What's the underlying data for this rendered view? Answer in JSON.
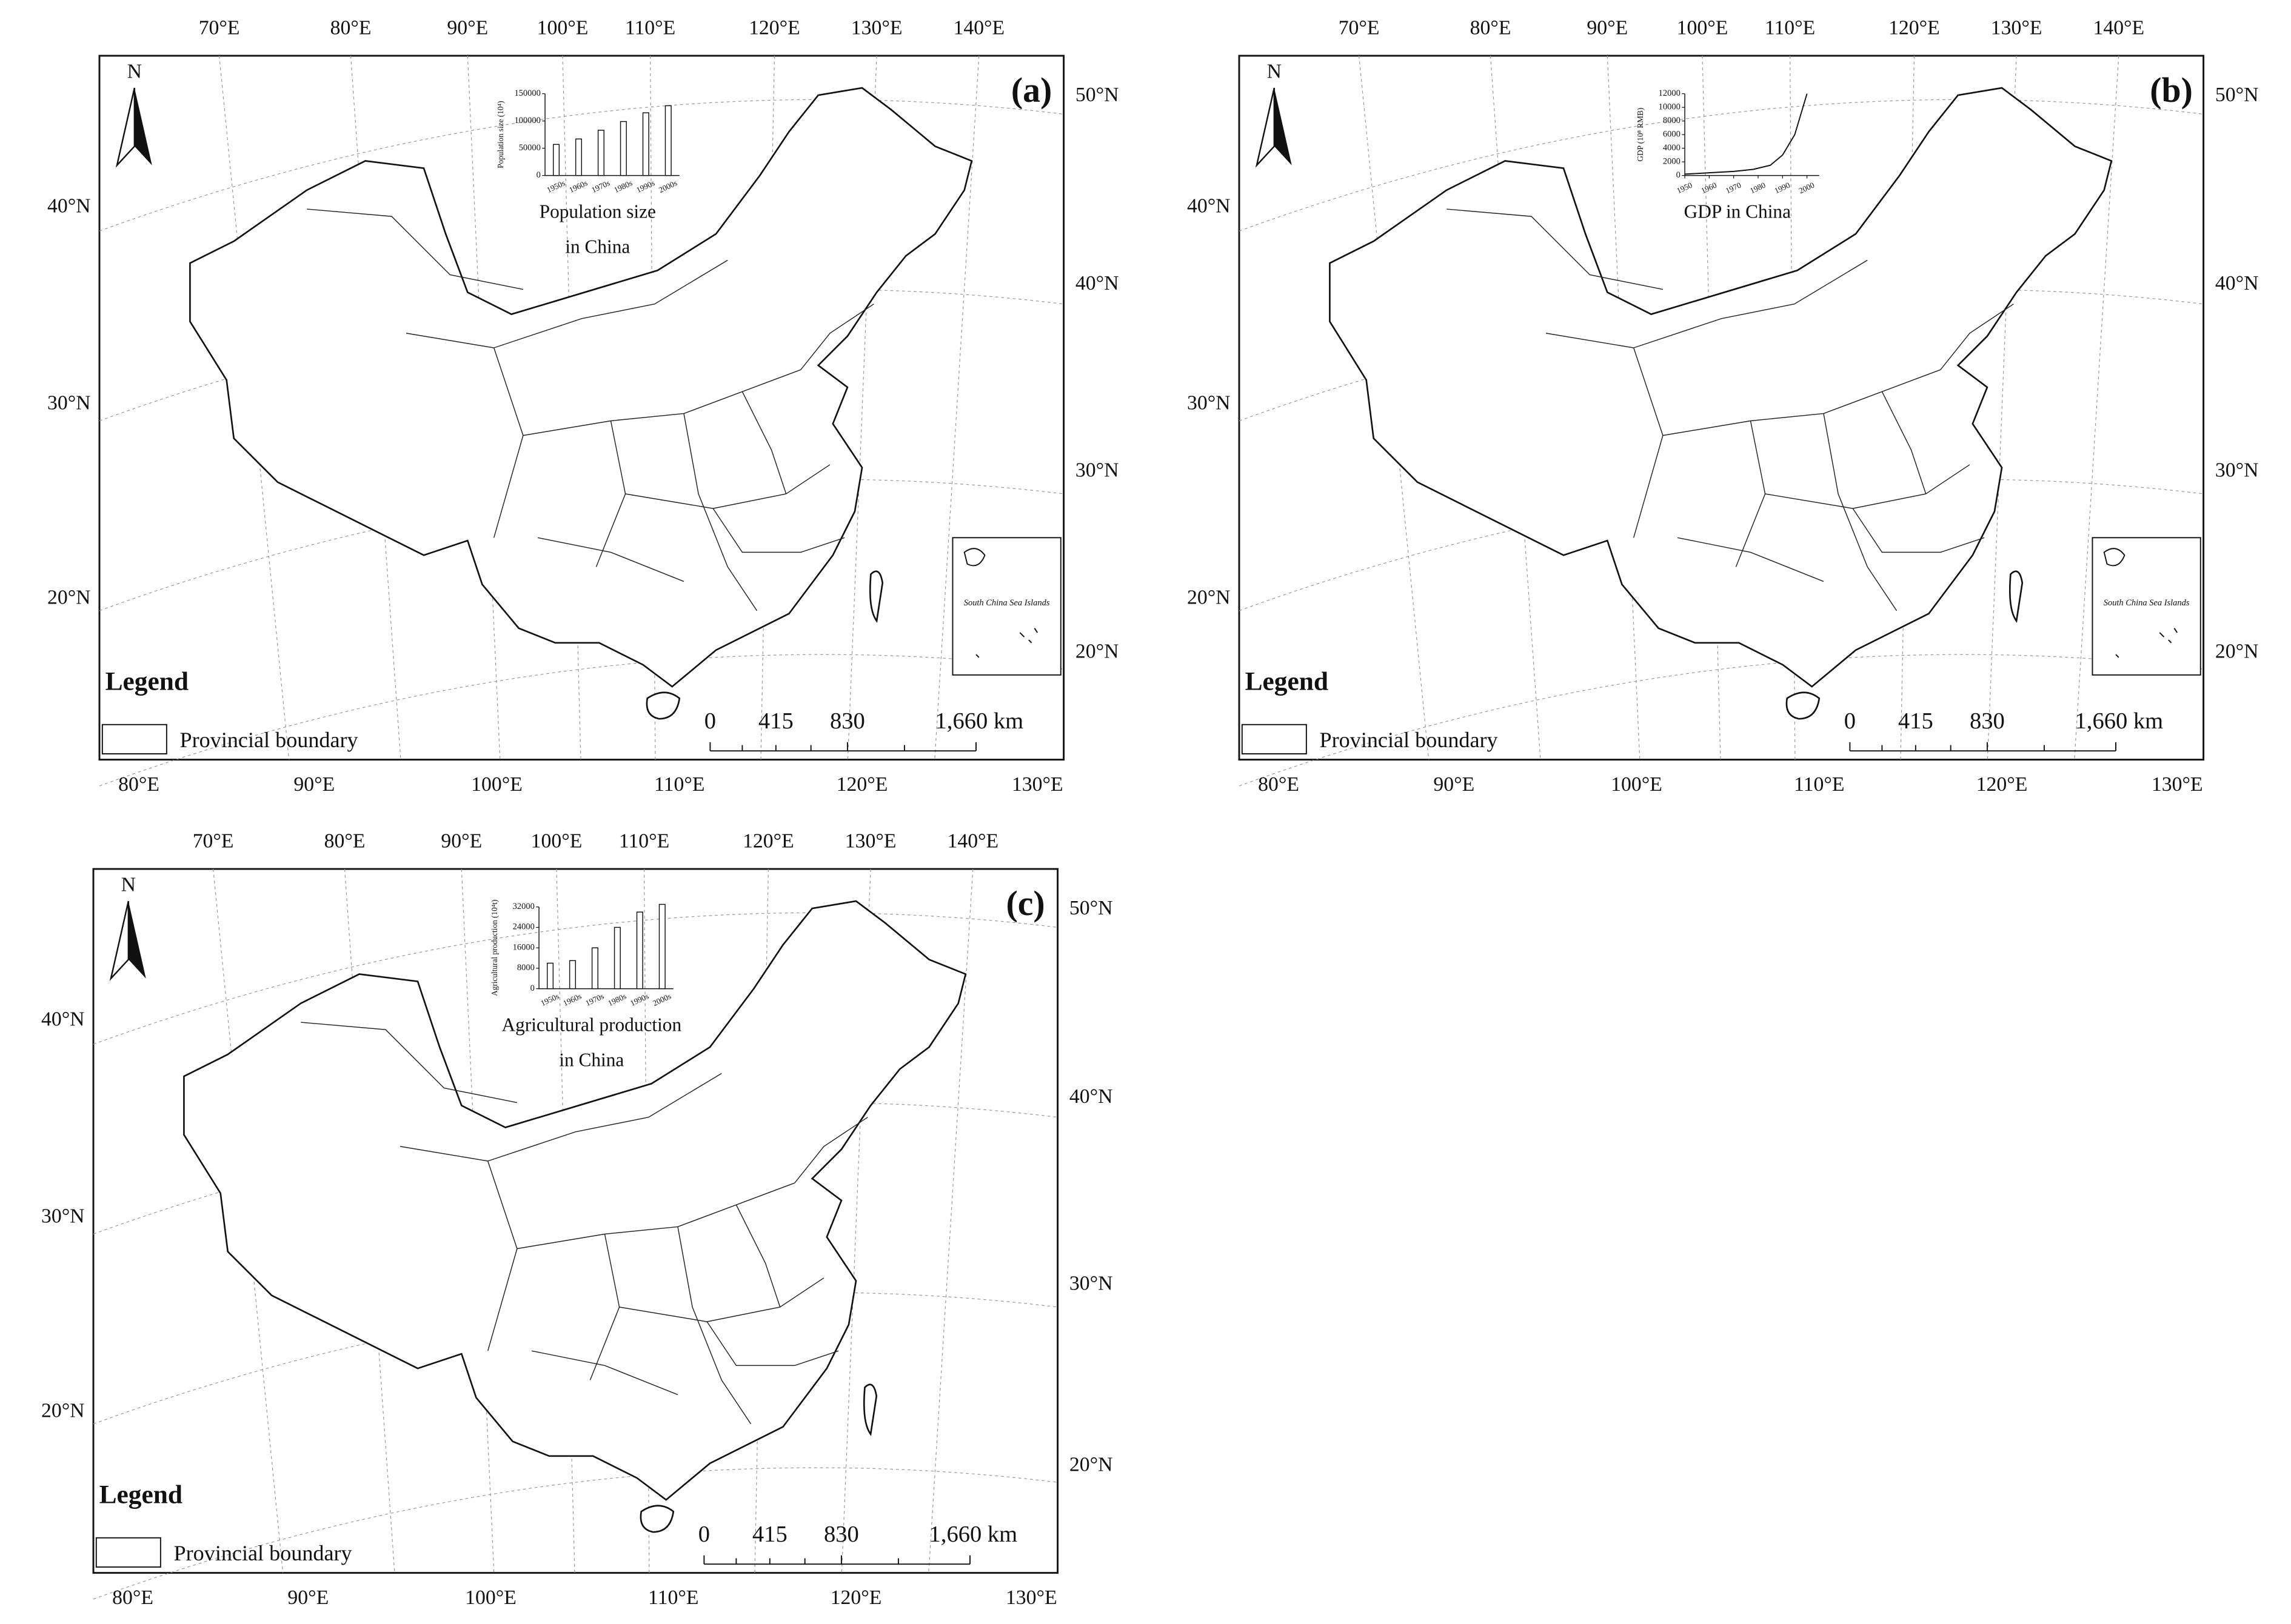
{
  "panels": [
    {
      "label": "(a)",
      "north": "N",
      "top_lon_labels": [
        "70°E",
        "80°E",
        "90°E",
        "100°E",
        "110°E",
        "120°E",
        "130°E",
        "140°E"
      ],
      "bottom_lon_labels": [
        "80°E",
        "90°E",
        "100°E",
        "110°E",
        "120°E",
        "130°E"
      ],
      "left_lat_labels": [
        "40°N",
        "30°N",
        "20°N"
      ],
      "right_lat_labels": [
        "50°N",
        "40°N",
        "30°N",
        "20°N"
      ],
      "legend_title": "Legend",
      "legend_item": "Provincial boundary",
      "scale_labels": [
        "0",
        "415",
        "830",
        "1,660"
      ],
      "scale_unit": "km",
      "sea_label": "South China Sea Islands",
      "inset": {
        "type": "bar",
        "title": [
          "Population size",
          "in China"
        ],
        "y_label": "Population size (10⁴)",
        "categories": [
          "1950s",
          "1960s",
          "1970s",
          "1980s",
          "1990s",
          "2000s"
        ],
        "values": [
          57000,
          67000,
          83000,
          99000,
          115000,
          128000
        ],
        "ylim": [
          0,
          150000
        ],
        "yticks": [
          0,
          50000,
          100000,
          150000
        ]
      }
    },
    {
      "label": "(b)",
      "north": "N",
      "top_lon_labels": [
        "70°E",
        "80°E",
        "90°E",
        "100°E",
        "110°E",
        "120°E",
        "130°E",
        "140°E"
      ],
      "bottom_lon_labels": [
        "80°E",
        "90°E",
        "100°E",
        "110°E",
        "120°E",
        "130°E"
      ],
      "left_lat_labels": [
        "40°N",
        "30°N",
        "20°N"
      ],
      "right_lat_labels": [
        "50°N",
        "40°N",
        "30°N",
        "20°N"
      ],
      "legend_title": "Legend",
      "legend_item": "Provincial boundary",
      "scale_labels": [
        "0",
        "415",
        "830",
        "1,660"
      ],
      "scale_unit": "km",
      "sea_label": "South China Sea Islands",
      "inset": {
        "type": "line",
        "title": [
          "GDP in China"
        ],
        "y_label": "GDP (10⁸ RMB)",
        "x": [
          1950,
          1960,
          1970,
          1978,
          1985,
          1990,
          1995,
          2000
        ],
        "values": [
          200,
          400,
          600,
          900,
          1500,
          3000,
          6000,
          12000
        ],
        "xlim": [
          1950,
          2005
        ],
        "xticks": [
          1950,
          1960,
          1970,
          1980,
          1990,
          2000
        ],
        "ylim": [
          0,
          12000
        ],
        "yticks": [
          0,
          2000,
          4000,
          6000,
          8000,
          10000,
          12000
        ]
      }
    },
    {
      "label": "(c)",
      "north": "N",
      "top_lon_labels": [
        "70°E",
        "80°E",
        "90°E",
        "100°E",
        "110°E",
        "120°E",
        "130°E",
        "140°E"
      ],
      "bottom_lon_labels": [
        "80°E",
        "90°E",
        "100°E",
        "110°E",
        "120°E",
        "130°E"
      ],
      "left_lat_labels": [
        "40°N",
        "30°N",
        "20°N"
      ],
      "right_lat_labels": [
        "50°N",
        "40°N",
        "30°N",
        "20°N"
      ],
      "legend_title": "Legend",
      "legend_item": "Provincial boundary",
      "scale_labels": [
        "0",
        "415",
        "830",
        "1,660"
      ],
      "scale_unit": "km",
      "inset": {
        "type": "bar",
        "title": [
          "Agricultural production",
          "in China"
        ],
        "y_label": "Agricultural production (10⁴t)",
        "categories": [
          "1950s",
          "1960s",
          "1970s",
          "1980s",
          "1990s",
          "2000s"
        ],
        "values": [
          10000,
          11000,
          16000,
          24000,
          30000,
          33000
        ],
        "ylim": [
          0,
          32000
        ],
        "yticks": [
          0,
          8000,
          16000,
          24000,
          32000
        ]
      }
    }
  ]
}
